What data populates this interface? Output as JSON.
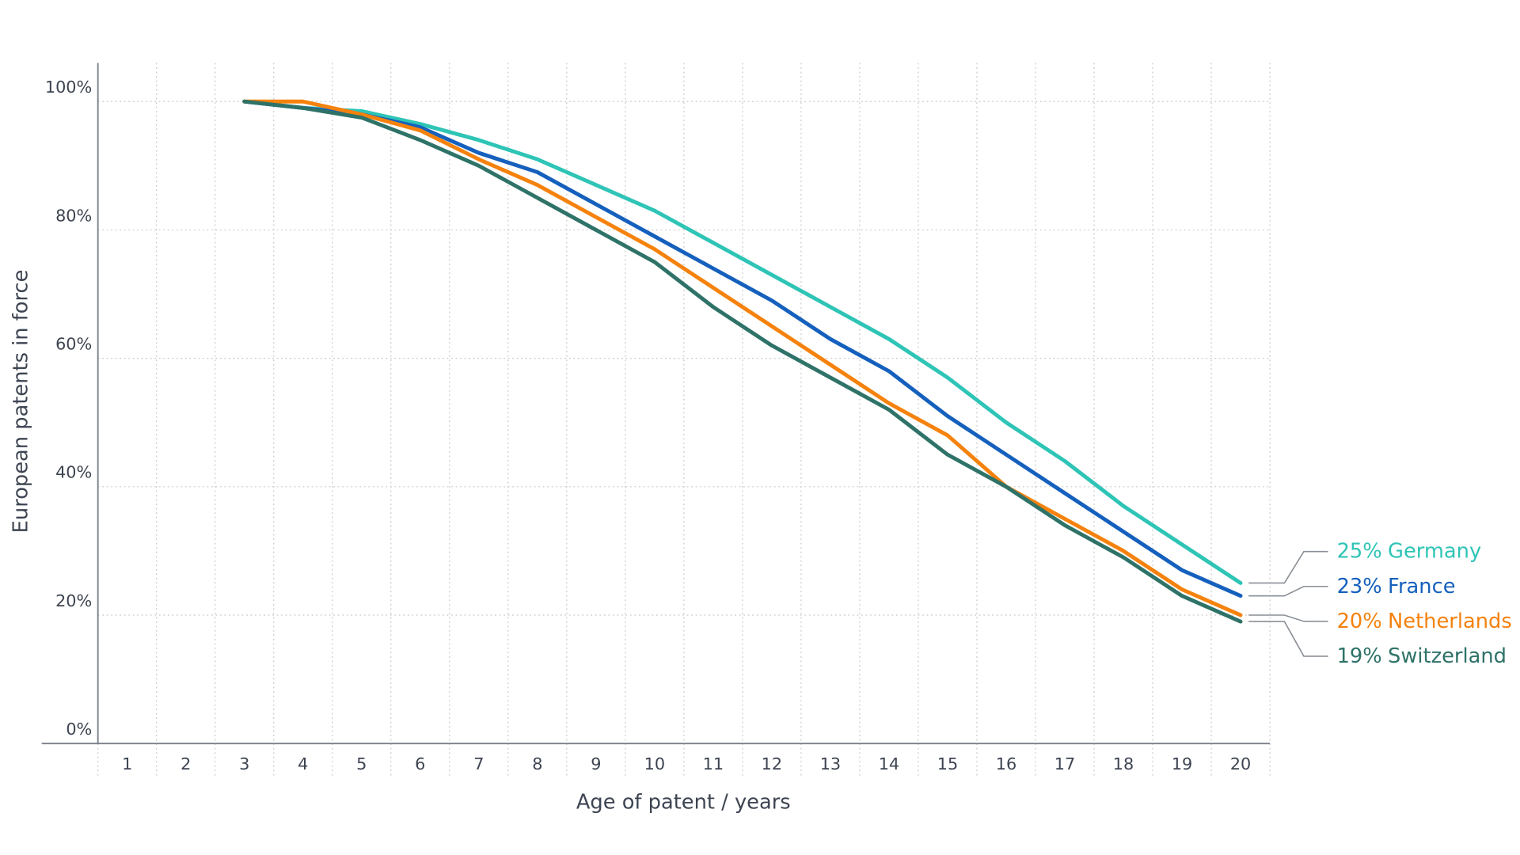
{
  "chart_data": {
    "type": "line",
    "x_label": "Age of patent / years",
    "y_label": "European patents in force",
    "categories": [
      "1",
      "2",
      "3",
      "4",
      "5",
      "6",
      "7",
      "8",
      "9",
      "10",
      "11",
      "12",
      "13",
      "14",
      "15",
      "16",
      "17",
      "18",
      "19",
      "20"
    ],
    "ylim": [
      0,
      106
    ],
    "yticks": [
      {
        "value": 0,
        "label": "0%"
      },
      {
        "value": 20,
        "label": "20%"
      },
      {
        "value": 40,
        "label": "40%"
      },
      {
        "value": 60,
        "label": "60%"
      },
      {
        "value": 80,
        "label": "80%"
      },
      {
        "value": 100,
        "label": "100%"
      }
    ],
    "grid": true,
    "series": [
      {
        "name": "Germany",
        "color": "#2ec4b6",
        "values": [
          null,
          null,
          100,
          99,
          98.5,
          96.5,
          94,
          91,
          87,
          83,
          78,
          73,
          68,
          63,
          57,
          50,
          44,
          37,
          31,
          25
        ],
        "value_labels": [
          null,
          null,
          null,
          null,
          null,
          null,
          null,
          null,
          null,
          null,
          null,
          null,
          null,
          null,
          null,
          null,
          null,
          null,
          null,
          "25%"
        ]
      },
      {
        "name": "France",
        "color": "#1560bd",
        "values": [
          null,
          null,
          100,
          99,
          98,
          96,
          92,
          89,
          84,
          79,
          74,
          69,
          63,
          58,
          51,
          45,
          39,
          33,
          27,
          23
        ],
        "value_labels": [
          null,
          null,
          null,
          null,
          null,
          null,
          null,
          null,
          null,
          null,
          null,
          null,
          null,
          null,
          null,
          null,
          null,
          null,
          null,
          "23%"
        ]
      },
      {
        "name": "Netherlands",
        "color": "#f5820d",
        "values": [
          null,
          null,
          100,
          100,
          98,
          95.5,
          91,
          87,
          82,
          77,
          71,
          65,
          59,
          53,
          48,
          40,
          35,
          30,
          24,
          20
        ],
        "value_labels": [
          null,
          null,
          null,
          null,
          null,
          null,
          null,
          null,
          null,
          null,
          null,
          null,
          null,
          null,
          null,
          null,
          null,
          null,
          null,
          "20%"
        ]
      },
      {
        "name": "Switzerland",
        "color": "#2e7268",
        "values": [
          null,
          null,
          100,
          99,
          97.5,
          94,
          90,
          85,
          80,
          75,
          68,
          62,
          57,
          52,
          45,
          40,
          34,
          29,
          23,
          19
        ],
        "value_labels": [
          null,
          null,
          null,
          null,
          null,
          null,
          null,
          null,
          null,
          null,
          null,
          null,
          null,
          null,
          null,
          null,
          null,
          null,
          null,
          "19%"
        ]
      }
    ]
  }
}
